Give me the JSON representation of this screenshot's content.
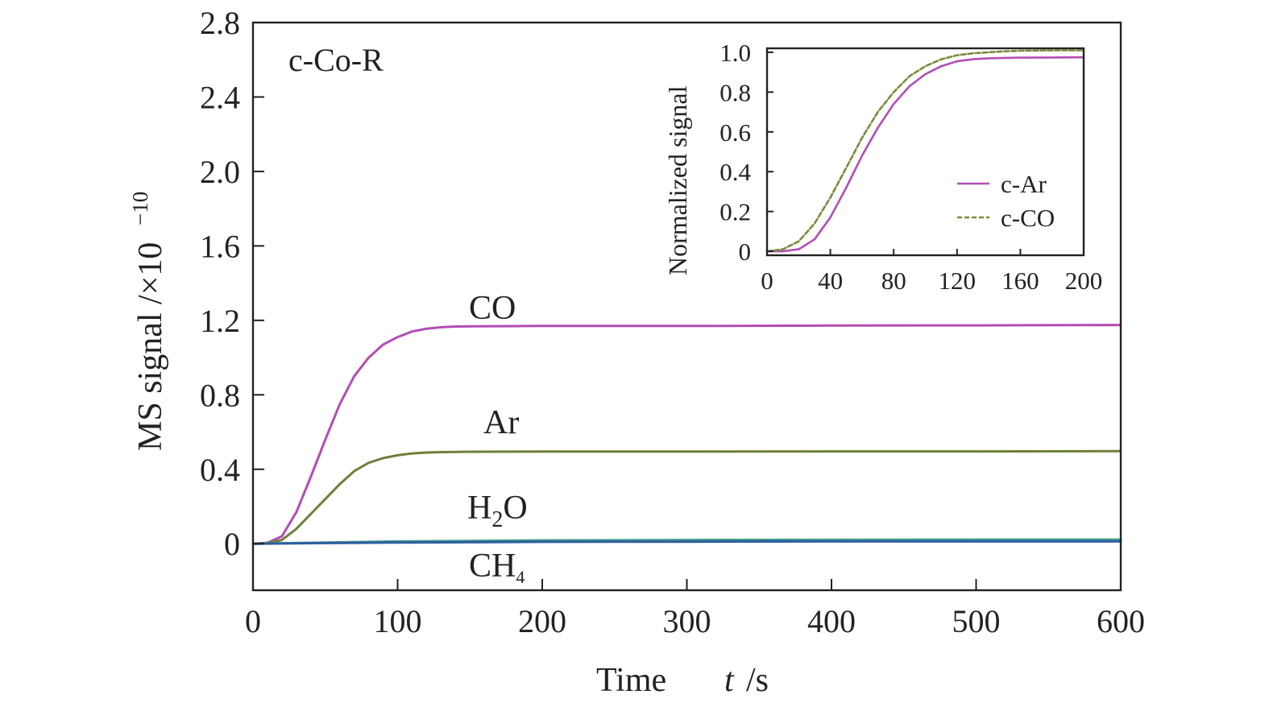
{
  "chart_data": [
    {
      "type": "line",
      "panel_label": "c-Co-R",
      "xlabel": {
        "prefix": "Time",
        "var": "t",
        "unit": "/s"
      },
      "ylabel": "MS signal /×10",
      "ylabel_exponent": "−10",
      "xlim": [
        0,
        600
      ],
      "ylim": [
        -0.25,
        2.8
      ],
      "x_ticks": [
        0,
        100,
        200,
        300,
        400,
        500,
        600
      ],
      "y_ticks": [
        0,
        0.4,
        0.8,
        1.2,
        1.6,
        2.0,
        2.4,
        2.8
      ],
      "y_tick_labels": [
        "0",
        "0.4",
        "0.8",
        "1.2",
        "1.6",
        "2.0",
        "2.4",
        "2.8"
      ],
      "series": [
        {
          "name": "CO",
          "label_main": "CO",
          "color": "#b24db5",
          "x": [
            0,
            10,
            20,
            30,
            40,
            50,
            60,
            70,
            80,
            90,
            100,
            110,
            120,
            130,
            140,
            150,
            200,
            300,
            400,
            500,
            600
          ],
          "values": [
            0,
            0.005,
            0.04,
            0.17,
            0.36,
            0.56,
            0.75,
            0.9,
            1.0,
            1.07,
            1.11,
            1.14,
            1.155,
            1.163,
            1.167,
            1.168,
            1.17,
            1.17,
            1.172,
            1.173,
            1.175
          ]
        },
        {
          "name": "Ar",
          "label_main": "Ar",
          "color": "#6f7f3a",
          "x": [
            0,
            10,
            20,
            30,
            40,
            50,
            60,
            70,
            80,
            90,
            100,
            110,
            120,
            130,
            140,
            150,
            200,
            300,
            400,
            500,
            600
          ],
          "values": [
            0,
            0.003,
            0.02,
            0.08,
            0.16,
            0.24,
            0.32,
            0.39,
            0.435,
            0.46,
            0.475,
            0.485,
            0.49,
            0.492,
            0.493,
            0.494,
            0.495,
            0.495,
            0.496,
            0.496,
            0.497
          ]
        },
        {
          "name": "H2O",
          "label_main": "H",
          "label_sub": "2",
          "label_tail": "O",
          "color": "#3f9a8c",
          "x": [
            0,
            100,
            200,
            300,
            400,
            500,
            600
          ],
          "values": [
            0,
            0.012,
            0.018,
            0.02,
            0.021,
            0.022,
            0.022
          ]
        },
        {
          "name": "CH4",
          "label_main": "CH",
          "label_sub": "4",
          "color": "#2f5fa0",
          "x": [
            0,
            100,
            200,
            300,
            400,
            500,
            600
          ],
          "values": [
            0,
            0.006,
            0.01,
            0.011,
            0.012,
            0.012,
            0.012
          ]
        }
      ]
    },
    {
      "type": "line",
      "ylabel": "Normalized signal",
      "xlim": [
        0,
        200
      ],
      "ylim": [
        -0.02,
        1.02
      ],
      "x_ticks": [
        0,
        40,
        80,
        120,
        160,
        200
      ],
      "y_ticks": [
        0,
        0.2,
        0.4,
        0.6,
        0.8,
        1.0
      ],
      "y_tick_labels": [
        "0",
        "0.2",
        "0.4",
        "0.6",
        "0.8",
        "1.0"
      ],
      "legend": "lower-right",
      "series": [
        {
          "name": "c-Ar",
          "style": "solid",
          "color": "#b24db5",
          "x": [
            0,
            10,
            20,
            30,
            40,
            50,
            60,
            70,
            80,
            90,
            100,
            110,
            120,
            130,
            140,
            150,
            160,
            180,
            200
          ],
          "values": [
            0,
            0,
            0.01,
            0.06,
            0.17,
            0.32,
            0.48,
            0.62,
            0.74,
            0.83,
            0.89,
            0.93,
            0.955,
            0.965,
            0.97,
            0.972,
            0.973,
            0.974,
            0.975
          ]
        },
        {
          "name": "c-CO",
          "style": "dashed",
          "color": "#7a8a3c",
          "x": [
            0,
            10,
            20,
            30,
            40,
            50,
            60,
            70,
            80,
            90,
            100,
            110,
            120,
            130,
            140,
            150,
            160,
            180,
            200
          ],
          "values": [
            0,
            0.01,
            0.05,
            0.14,
            0.27,
            0.42,
            0.57,
            0.7,
            0.8,
            0.88,
            0.93,
            0.965,
            0.985,
            0.995,
            1.0,
            1.005,
            1.008,
            1.01,
            1.01
          ]
        }
      ]
    }
  ]
}
